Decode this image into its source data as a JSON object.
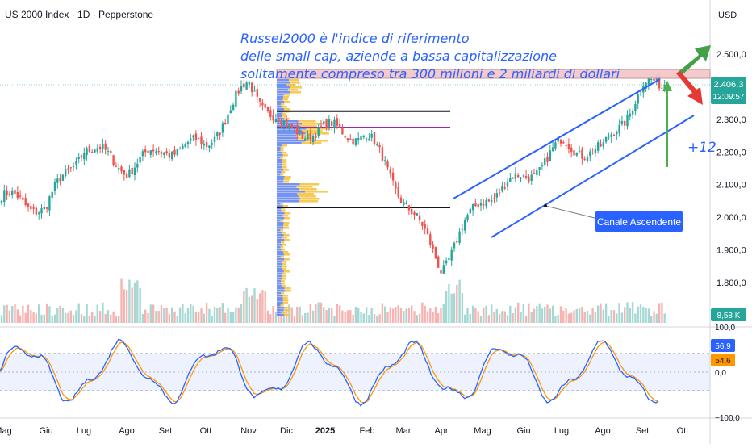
{
  "header": {
    "symbol_line": "US 2000 Index · 1D · Pepperstone",
    "currency": "USD"
  },
  "colors": {
    "up": "#26a69a",
    "down": "#ef5350",
    "channel": "#2962ff",
    "accent": "#2962ff",
    "vp_up": "#5b7ff0",
    "vp_down": "#f6c343"
  },
  "annotation": {
    "lines": [
      "Russel2000 è l'indice di riferimento",
      "delle small cap, aziende a bassa capitalizzazione",
      "solitamente compreso tra 300 milioni e 2 miliardi di dollari"
    ],
    "percent": "+12",
    "callout": "Canale Ascendente"
  },
  "price_axis": {
    "ticks": [
      "2.500,0",
      "2.400,0",
      "2.300,0",
      "2.200,0",
      "2.100,0",
      "2.000,0",
      "1.900,0",
      "1.800,0"
    ],
    "last_price": "2.406,3",
    "countdown": "12:09:57",
    "volume_label": "8,58 K"
  },
  "time_axis": {
    "labels": [
      "Mag",
      "Giu",
      "Lug",
      "Ago",
      "Set",
      "Ott",
      "Nov",
      "Dic",
      "2025",
      "Feb",
      "Mar",
      "Apr",
      "Mag",
      "Giu",
      "Lug",
      "Ago",
      "Set",
      "Ott"
    ]
  },
  "oscillator": {
    "ticks": [
      "100,0",
      "0,0",
      "−100,0"
    ],
    "k_value": "56,9",
    "d_value": "54,6"
  },
  "chart_data": {
    "type": "candlestick",
    "title": "US 2000 Index · 1D · Pepperstone",
    "ylim": [
      1730,
      2560
    ],
    "horizontal_levels": [
      2325,
      2275,
      2030
    ],
    "series_path": [
      {
        "month": "Mag",
        "close": 2060
      },
      {
        "month": "Giu",
        "close": 2030
      },
      {
        "month": "Lug",
        "close": 2220
      },
      {
        "month": "Ago",
        "close": 2150
      },
      {
        "month": "Set",
        "close": 2210
      },
      {
        "month": "Ott",
        "close": 2220
      },
      {
        "month": "Nov",
        "close": 2410
      },
      {
        "month": "Dic",
        "close": 2260
      },
      {
        "month": "2025",
        "close": 2270
      },
      {
        "month": "Feb",
        "close": 2250
      },
      {
        "month": "Mar",
        "close": 2060
      },
      {
        "month": "Apr",
        "close": 1850
      },
      {
        "month": "Mag",
        "close": 2060
      },
      {
        "month": "Giu",
        "close": 2120
      },
      {
        "month": "Lug",
        "close": 2220
      },
      {
        "month": "Ago",
        "close": 2200
      },
      {
        "month": "Set",
        "close": 2400
      }
    ],
    "last_close": 2406.3,
    "oscillator": {
      "name": "Stochastic",
      "range": [
        -100,
        100
      ],
      "k": 56.9,
      "d": 54.6
    }
  }
}
